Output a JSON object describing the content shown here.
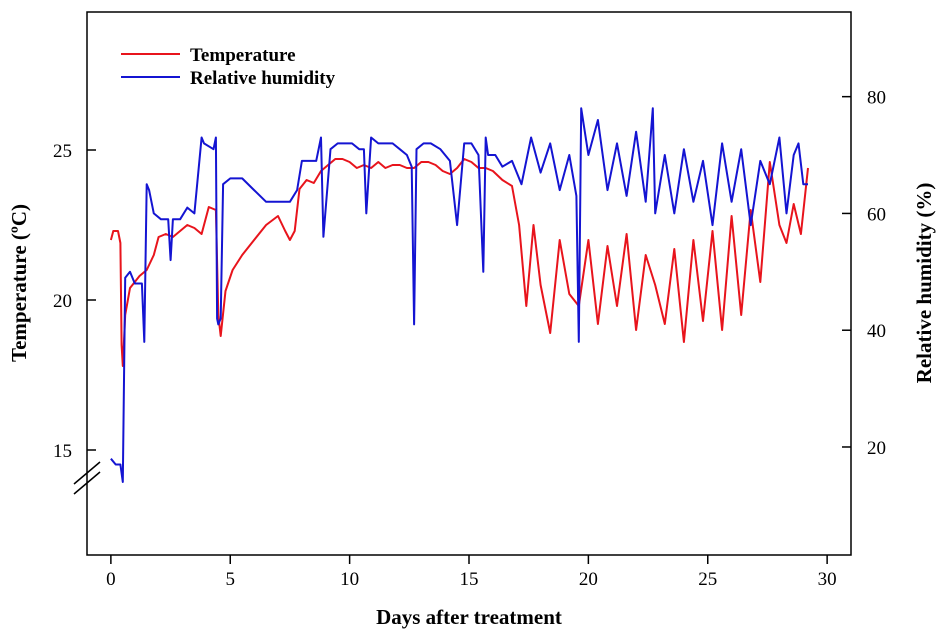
{
  "chart_data": {
    "type": "line",
    "xlabel": "Days after treatment",
    "ylabel_left": "Temperature (ºC)",
    "ylabel_right": "Relative humidity (%)",
    "xlim": [
      -1,
      31
    ],
    "x_ticks": [
      0,
      5,
      10,
      15,
      20,
      25,
      30
    ],
    "ylim_left": [
      11.5,
      29.6
    ],
    "y_ticks_left": [
      15,
      20,
      25
    ],
    "ylim_right": [
      1.5,
      94.5
    ],
    "y_ticks_right": [
      20,
      40,
      60,
      80
    ],
    "left_axis_break": true,
    "grid": false,
    "legend_position": "top-left",
    "colors": {
      "temperature": "#e8141c",
      "humidity": "#1414d2"
    },
    "series": [
      {
        "name": "Temperature",
        "axis": "left",
        "x": [
          0.0,
          0.1,
          0.3,
          0.4,
          0.45,
          0.5,
          0.6,
          0.8,
          1.0,
          1.2,
          1.5,
          1.8,
          2.0,
          2.3,
          2.6,
          2.9,
          3.2,
          3.5,
          3.8,
          4.1,
          4.4,
          4.5,
          4.6,
          4.8,
          5.1,
          5.5,
          6.0,
          6.5,
          7.0,
          7.3,
          7.5,
          7.7,
          7.9,
          8.2,
          8.5,
          8.8,
          9.1,
          9.4,
          9.7,
          10.0,
          10.3,
          10.6,
          10.9,
          11.2,
          11.5,
          11.8,
          12.1,
          12.4,
          12.7,
          13.0,
          13.3,
          13.6,
          13.9,
          14.2,
          14.5,
          14.8,
          15.1,
          15.4,
          15.7,
          16.0,
          16.4,
          16.8,
          17.1,
          17.4,
          17.7,
          18.0,
          18.4,
          18.8,
          19.2,
          19.6,
          20.0,
          20.4,
          20.8,
          21.2,
          21.6,
          22.0,
          22.4,
          22.8,
          23.2,
          23.6,
          24.0,
          24.4,
          24.8,
          25.2,
          25.6,
          26.0,
          26.4,
          26.8,
          27.2,
          27.6,
          28.0,
          28.3,
          28.6,
          28.9,
          29.2
        ],
        "y": [
          22.0,
          22.3,
          22.3,
          21.9,
          18.5,
          17.8,
          19.5,
          20.4,
          20.6,
          20.8,
          21.0,
          21.5,
          22.1,
          22.2,
          22.1,
          22.3,
          22.5,
          22.4,
          22.2,
          23.1,
          23.0,
          19.5,
          18.8,
          20.3,
          21.0,
          21.5,
          22.0,
          22.5,
          22.8,
          22.3,
          22.0,
          22.3,
          23.7,
          24.0,
          23.9,
          24.3,
          24.5,
          24.7,
          24.7,
          24.6,
          24.4,
          24.5,
          24.4,
          24.6,
          24.4,
          24.5,
          24.5,
          24.4,
          24.4,
          24.6,
          24.6,
          24.5,
          24.3,
          24.2,
          24.4,
          24.7,
          24.6,
          24.4,
          24.4,
          24.3,
          24.0,
          23.8,
          22.5,
          19.8,
          22.5,
          20.5,
          18.9,
          22.0,
          20.2,
          19.8,
          22.0,
          19.2,
          21.8,
          19.8,
          22.2,
          19.0,
          21.5,
          20.5,
          19.2,
          21.7,
          18.6,
          22.0,
          19.3,
          22.3,
          19.0,
          22.8,
          19.5,
          23.0,
          20.6,
          24.6,
          22.5,
          21.9,
          23.2,
          22.2,
          24.4
        ]
      },
      {
        "name": "Relative humidity",
        "axis": "right",
        "x": [
          0.0,
          0.2,
          0.4,
          0.5,
          0.6,
          0.8,
          1.0,
          1.3,
          1.4,
          1.5,
          1.6,
          1.8,
          2.1,
          2.4,
          2.5,
          2.6,
          2.9,
          3.2,
          3.5,
          3.8,
          3.9,
          4.3,
          4.4,
          4.45,
          4.5,
          4.6,
          4.7,
          5.0,
          5.5,
          6.0,
          6.5,
          7.0,
          7.5,
          7.8,
          8.0,
          8.3,
          8.6,
          8.8,
          8.9,
          9.2,
          9.5,
          9.8,
          10.1,
          10.4,
          10.6,
          10.7,
          10.9,
          11.2,
          11.5,
          11.8,
          12.1,
          12.4,
          12.6,
          12.7,
          12.8,
          13.1,
          13.4,
          13.8,
          14.2,
          14.5,
          14.8,
          15.1,
          15.4,
          15.6,
          15.7,
          15.8,
          16.1,
          16.4,
          16.8,
          17.2,
          17.6,
          18.0,
          18.4,
          18.8,
          19.2,
          19.5,
          19.6,
          19.7,
          20.0,
          20.4,
          20.8,
          21.2,
          21.6,
          22.0,
          22.4,
          22.7,
          22.8,
          23.2,
          23.6,
          24.0,
          24.4,
          24.8,
          25.2,
          25.6,
          26.0,
          26.4,
          26.8,
          27.2,
          27.6,
          28.0,
          28.3,
          28.6,
          28.8,
          29.0,
          29.2
        ],
        "y": [
          18,
          17,
          17,
          14,
          49,
          50,
          48,
          48,
          38,
          65,
          64,
          60,
          59,
          59,
          52,
          59,
          59,
          61,
          60,
          73,
          72,
          71,
          73,
          42,
          41,
          42,
          65,
          66,
          66,
          64,
          62,
          62,
          62,
          64,
          69,
          69,
          69,
          73,
          56,
          71,
          72,
          72,
          72,
          71,
          71,
          60,
          73,
          72,
          72,
          72,
          71,
          70,
          68,
          41,
          71,
          72,
          72,
          71,
          69,
          58,
          72,
          72,
          70,
          50,
          73,
          70,
          70,
          68,
          69,
          65,
          73,
          67,
          72,
          64,
          70,
          63,
          38,
          78,
          70,
          76,
          64,
          72,
          63,
          74,
          62,
          78,
          60,
          70,
          60,
          71,
          62,
          69,
          58,
          72,
          62,
          71,
          58,
          69,
          65,
          73,
          60,
          70,
          72,
          65,
          65
        ]
      }
    ]
  }
}
